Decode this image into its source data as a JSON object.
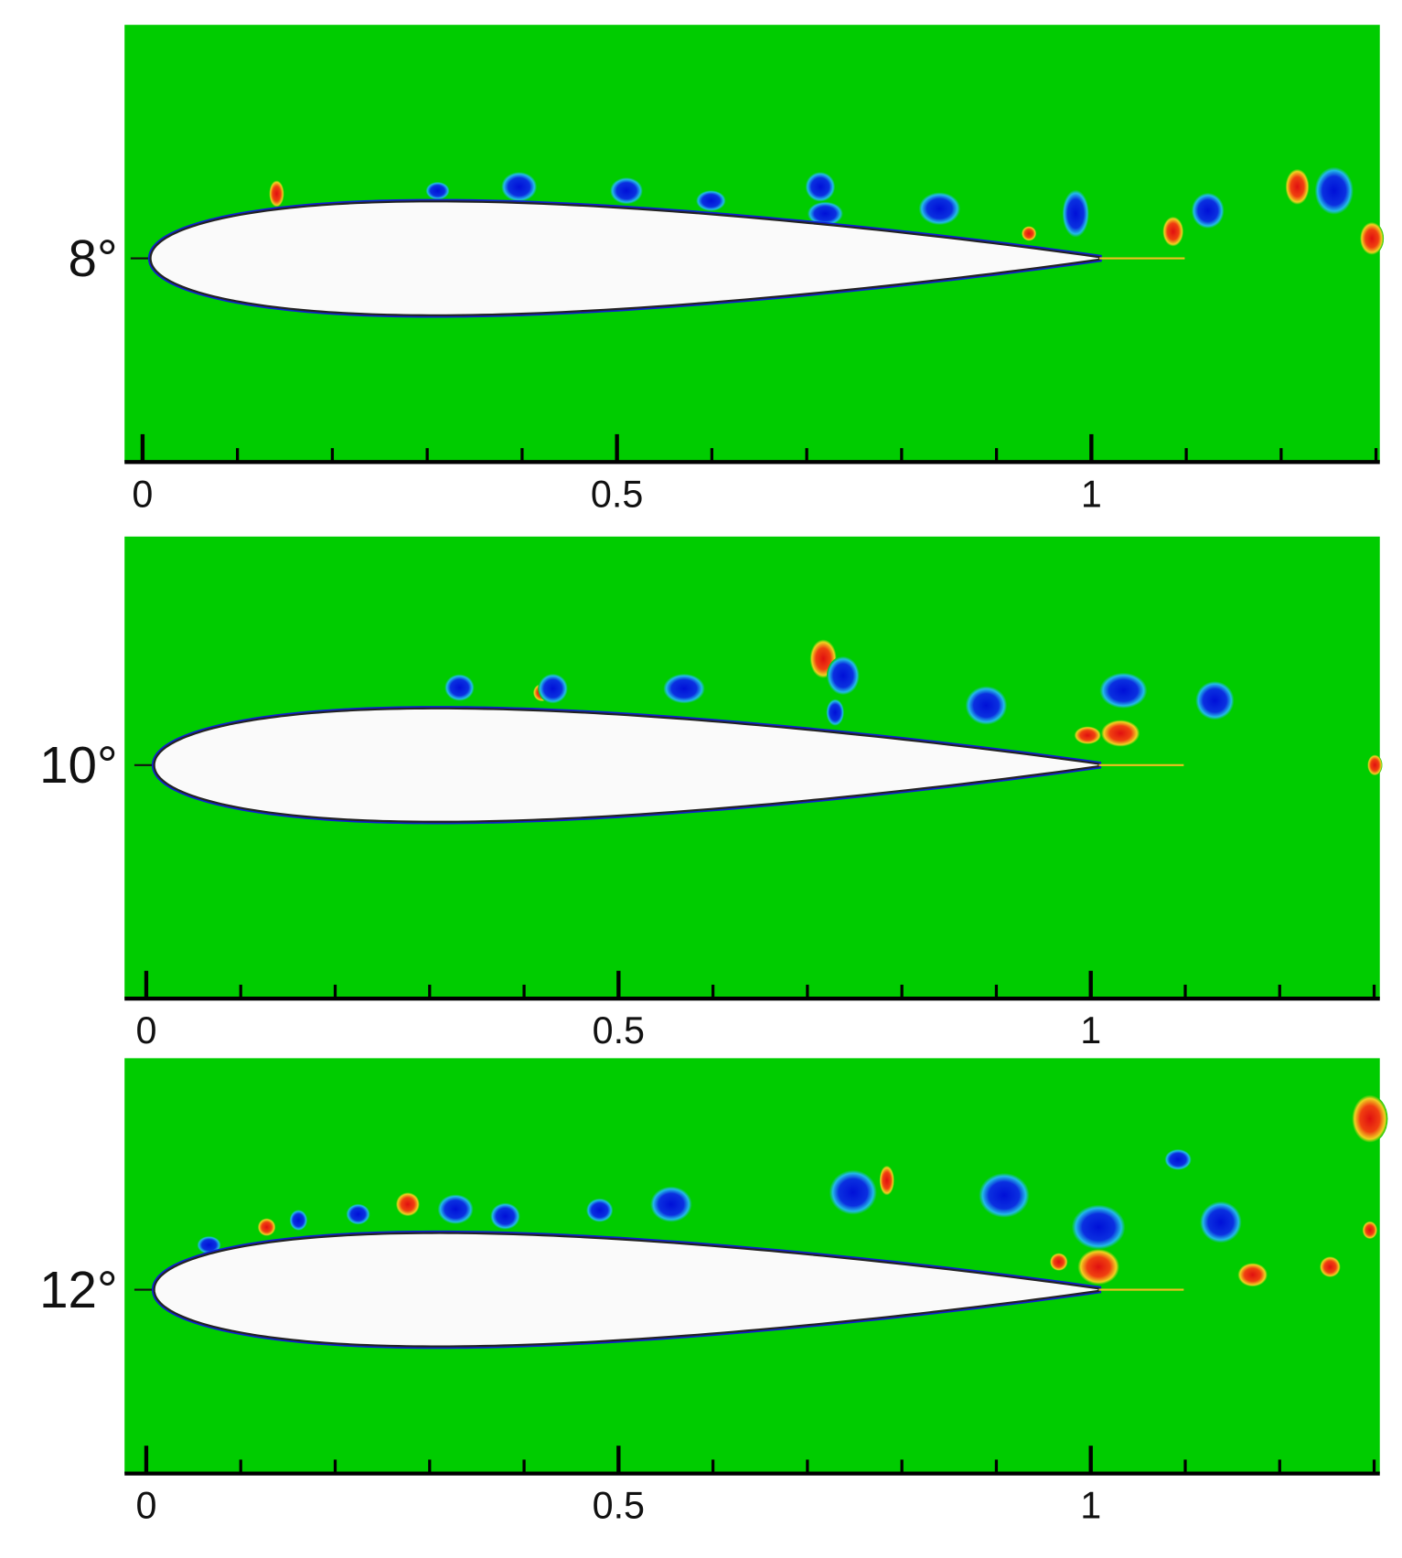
{
  "panels": [
    {
      "label": "8°",
      "xlim": [
        -0.019,
        1.304
      ],
      "xticks": [
        0,
        0.5,
        1
      ],
      "minor_xticks": [
        0.1,
        0.2,
        0.3,
        0.4,
        0.6,
        0.7,
        0.8,
        0.9,
        1.1,
        1.2,
        1.3
      ]
    },
    {
      "label": "10°",
      "xlim": [
        -0.023,
        1.306
      ],
      "xticks": [
        0,
        0.5,
        1
      ],
      "minor_xticks": [
        0.1,
        0.2,
        0.3,
        0.4,
        0.6,
        0.7,
        0.8,
        0.9,
        1.1,
        1.2,
        1.3
      ]
    },
    {
      "label": "12°",
      "xlim": [
        -0.023,
        1.306
      ],
      "xticks": [
        0,
        0.5,
        1
      ],
      "minor_xticks": [
        0.1,
        0.2,
        0.3,
        0.4,
        0.6,
        0.7,
        0.8,
        0.9,
        1.1,
        1.2,
        1.3
      ]
    }
  ]
}
